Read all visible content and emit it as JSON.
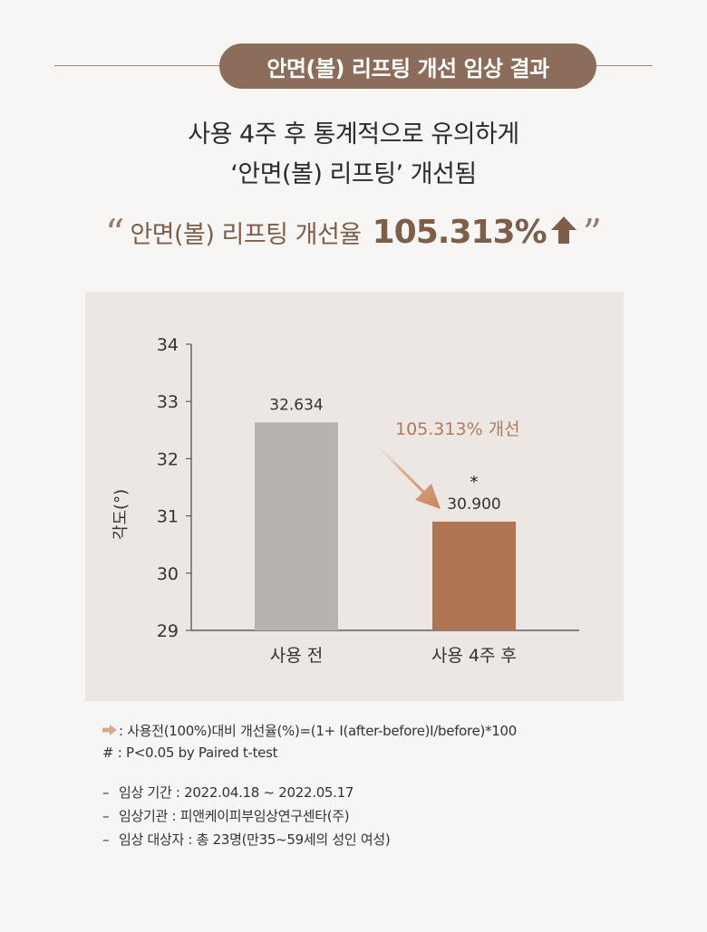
{
  "header": {
    "title": "안면(볼) 리프팅 개선 임상 결과"
  },
  "headline": {
    "line1": "사용 4주 후 통계적으로 유의하게",
    "line2": "‘안면(볼) 리프팅’ 개선됨"
  },
  "improvement": {
    "label": "안면(볼) 리프팅 개선율",
    "value": "105.313%",
    "open_quote": "“",
    "close_quote": "”"
  },
  "colors": {
    "accent": "#8c6c5b",
    "bar_before": "#b8b3af",
    "bar_after": "#b07555",
    "annotation": "#b07a5e"
  },
  "chart_data": {
    "type": "bar",
    "categories": [
      "사용 전",
      "사용 4주 후"
    ],
    "values": [
      32.634,
      30.9
    ],
    "value_labels": [
      "32.634",
      "30.900"
    ],
    "ylabel": "각도(°)",
    "ylim": [
      29,
      34
    ],
    "yticks": [
      "29",
      "30",
      "31",
      "32",
      "33",
      "34"
    ],
    "significance_marker": "*",
    "annotation": "105.313% 개선",
    "grid": false
  },
  "notes": {
    "formula": ": 사용전(100%)대비 개선율(%)=(1+ I(after-before)I/before)*100",
    "significance": "# : P<0.05 by Paired t-test",
    "period": "임상 기간 : 2022.04.18 ~ 2022.05.17",
    "institution": "임상기관 : 피앤케이피부임상연구센타(주)",
    "subjects": "임상 대상자 : 총 23명(만35~59세의 성인 여성)",
    "dash": "–"
  }
}
